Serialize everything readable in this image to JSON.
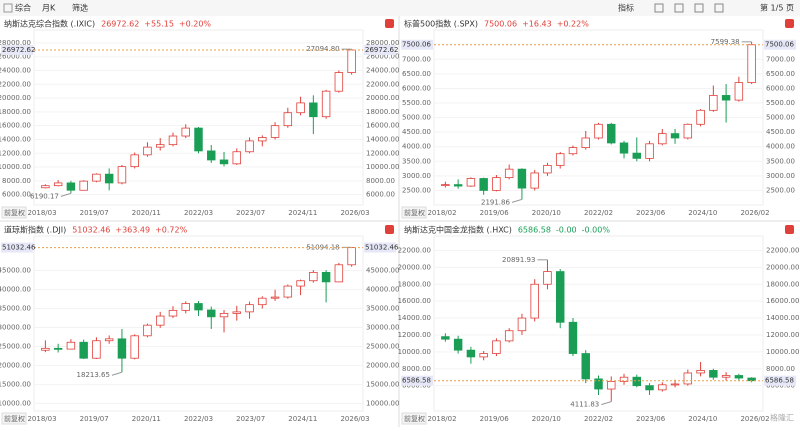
{
  "toolbar": {
    "tabs": [
      "综合",
      "月K",
      "筛选"
    ],
    "indicator": "指标",
    "page": "第 1/5 页"
  },
  "watermark": "格隆汇",
  "chart_data": [
    {
      "type": "candlestick",
      "title": "纳斯达克综合指数 (.IXIC)",
      "price": "26972.62",
      "change": "+55.15",
      "change_pct": "+0.20%",
      "header_color": "#e0403a",
      "adjust": "前复权",
      "up_color": "#e0403a",
      "down_color": "#1a9e55",
      "categories": [
        "2018/03",
        "2019/07",
        "2020/11",
        "2022/03",
        "2023/07",
        "2024/11",
        "2026/03"
      ],
      "open": [
        7000,
        7300,
        7700,
        6640,
        7960,
        8970,
        7700,
        10060,
        11770,
        12890,
        13250,
        14500,
        15650,
        12340,
        11030,
        10470,
        12220,
        13790,
        14300,
        16000,
        17880,
        19300,
        17300,
        21000,
        23700
      ],
      "close": [
        7300,
        7700,
        6640,
        7960,
        8970,
        7700,
        10060,
        11770,
        12890,
        13250,
        14500,
        15650,
        12340,
        11030,
        10470,
        12220,
        13790,
        14300,
        16000,
        17880,
        19300,
        17300,
        21000,
        23700,
        26972.62
      ],
      "high": [
        7500,
        8100,
        8000,
        8100,
        9100,
        9800,
        10300,
        12100,
        13600,
        14200,
        15000,
        16200,
        15800,
        13200,
        12200,
        12700,
        14300,
        14600,
        16500,
        18600,
        20200,
        20400,
        21200,
        24000,
        27094.8
      ],
      "low": [
        6900,
        7200,
        6190.17,
        6600,
        7800,
        6630,
        7500,
        9800,
        11500,
        12400,
        13000,
        14200,
        12000,
        10600,
        10100,
        10300,
        12000,
        13000,
        14000,
        15700,
        17500,
        14780,
        17000,
        20800,
        23400
      ],
      "annotations": [
        {
          "label": "27094.80",
          "value": 27094.8
        },
        {
          "label": "6190.17",
          "value": 6190.17
        }
      ],
      "ylim": [
        4500,
        29000
      ],
      "yticks": [
        {
          "value": 28000,
          "label": "28000.00"
        },
        {
          "value": 26000,
          "label": "26000.00"
        },
        {
          "value": 24000,
          "label": "24000.00"
        },
        {
          "value": 22000,
          "label": "22000.00"
        },
        {
          "value": 20000,
          "label": "20000.00"
        },
        {
          "value": 18000,
          "label": "18000.00"
        },
        {
          "value": 16000,
          "label": "16000.00"
        },
        {
          "value": 14000,
          "label": "14000.00"
        },
        {
          "value": 12000,
          "label": "12000.00"
        },
        {
          "value": 10000,
          "label": "10000.00"
        },
        {
          "value": 8000,
          "label": "8000.00"
        },
        {
          "value": 6000,
          "label": "6000.00"
        }
      ]
    },
    {
      "type": "candlestick",
      "title": "标普500指数 (.SPX)",
      "price": "7500.06",
      "change": "+16.43",
      "change_pct": "+0.22%",
      "header_color": "#e0403a",
      "adjust": "前复权",
      "up_color": "#e0403a",
      "down_color": "#1a9e55",
      "categories": [
        "2018/02",
        "2019/06",
        "2020/10",
        "2022/02",
        "2023/06",
        "2024/10",
        "2026/02"
      ],
      "open": [
        2670,
        2700,
        2650,
        2910,
        2500,
        2940,
        3230,
        2580,
        3100,
        3360,
        3760,
        3970,
        4300,
        4770,
        4130,
        3780,
        3600,
        4100,
        4450,
        4300,
        4770,
        5250,
        5760,
        5600,
        6200
      ],
      "close": [
        2700,
        2650,
        2910,
        2500,
        2940,
        3230,
        2580,
        3100,
        3360,
        3760,
        3970,
        4300,
        4770,
        4130,
        3780,
        3600,
        4100,
        4450,
        4300,
        4770,
        5250,
        5760,
        5600,
        6200,
        7500.06
      ],
      "high": [
        2800,
        2880,
        2950,
        2940,
        3030,
        3390,
        3260,
        3200,
        3450,
        3820,
        4040,
        4540,
        4820,
        4820,
        4200,
        4320,
        4200,
        4610,
        4610,
        4800,
        5290,
        6100,
        6150,
        6400,
        7599.38
      ],
      "low": [
        2600,
        2560,
        2620,
        2350,
        2470,
        2880,
        2191.86,
        2500,
        3000,
        3250,
        3700,
        3900,
        4250,
        4080,
        3600,
        3500,
        3500,
        4050,
        4100,
        4250,
        4700,
        5200,
        4830,
        5550,
        6150
      ],
      "annotations": [
        {
          "label": "7599.38",
          "value": 7599.38
        },
        {
          "label": "2191.86",
          "value": 2191.86
        }
      ],
      "ylim": [
        2000,
        7800
      ],
      "yticks": [
        {
          "value": 7000,
          "label": "7000.00"
        },
        {
          "value": 6500,
          "label": "6500.00"
        },
        {
          "value": 6000,
          "label": "6000.00"
        },
        {
          "value": 5500,
          "label": "5500.00"
        },
        {
          "value": 5000,
          "label": "5000.00"
        },
        {
          "value": 4500,
          "label": "4500.00"
        },
        {
          "value": 4000,
          "label": "4000.00"
        },
        {
          "value": 3500,
          "label": "3500.00"
        },
        {
          "value": 3000,
          "label": "3000.00"
        },
        {
          "value": 2500,
          "label": "2500.00"
        }
      ]
    },
    {
      "type": "candlestick",
      "title": "道琼斯指数 (.DJI)",
      "price": "51032.46",
      "change": "+363.49",
      "change_pct": "+0.72%",
      "header_color": "#e0403a",
      "adjust": "前复权",
      "up_color": "#e0403a",
      "down_color": "#1a9e55",
      "categories": [
        "2018/03",
        "2019/07",
        "2020/11",
        "2022/03",
        "2023/07",
        "2024/11",
        "2026/03"
      ],
      "open": [
        24000,
        24500,
        24300,
        26100,
        21900,
        26500,
        27000,
        21900,
        27800,
        30600,
        33000,
        34500,
        36300,
        34600,
        32800,
        33700,
        34100,
        36000,
        37700,
        38000,
        40900,
        42300,
        44500,
        42000,
        46500
      ],
      "close": [
        24500,
        24300,
        26100,
        21900,
        26500,
        27000,
        21900,
        27800,
        30600,
        33000,
        34500,
        36300,
        34600,
        32800,
        33700,
        34100,
        36000,
        37700,
        38000,
        40900,
        42300,
        44500,
        42000,
        46500,
        51032.46
      ],
      "high": [
        26600,
        25700,
        26900,
        26800,
        27400,
        27900,
        29600,
        28200,
        31000,
        34100,
        35600,
        36900,
        36950,
        35500,
        34600,
        35700,
        36800,
        38200,
        39900,
        41300,
        42600,
        45100,
        45100,
        47000,
        51094.18
      ],
      "low": [
        23500,
        23400,
        24200,
        21700,
        21700,
        25700,
        18213.65,
        21600,
        27400,
        29900,
        32500,
        33700,
        33000,
        29600,
        28700,
        31800,
        32300,
        35000,
        37000,
        37600,
        38500,
        41800,
        36600,
        41900,
        46000
      ],
      "annotations": [
        {
          "label": "51094.18",
          "value": 51094.18
        },
        {
          "label": "18213.65",
          "value": 18213.65
        }
      ],
      "ylim": [
        8000,
        52500
      ],
      "yticks": [
        {
          "value": 45000,
          "label": "45000.00"
        },
        {
          "value": 40000,
          "label": "40000.00"
        },
        {
          "value": 35000,
          "label": "35000.00"
        },
        {
          "value": 30000,
          "label": "30000.00"
        },
        {
          "value": 25000,
          "label": "25000.00"
        },
        {
          "value": 20000,
          "label": "20000.00"
        },
        {
          "value": 15000,
          "label": "15000.00"
        },
        {
          "value": 10000,
          "label": "10000.00"
        }
      ]
    },
    {
      "type": "candlestick",
      "title": "纳斯达克中国金龙指数 (.HXC)",
      "price": "6586.58",
      "change": "-0.00",
      "change_pct": "-0.00%",
      "header_color": "#1a9e55",
      "adjust": "前复权",
      "up_color": "#e0403a",
      "down_color": "#1a9e55",
      "categories": [
        "2018/02",
        "2019/06",
        "2020/10",
        "2022/02",
        "2023/06",
        "2024/10",
        "2026/02"
      ],
      "open": [
        11800,
        11500,
        10200,
        9400,
        9800,
        11300,
        12500,
        14000,
        18000,
        19500,
        13500,
        9800,
        6800,
        5600,
        6500,
        7000,
        6000,
        5500,
        6100,
        6200,
        7500,
        7800,
        7000,
        7200,
        6900
      ],
      "close": [
        11500,
        10200,
        9400,
        9800,
        11300,
        12500,
        14000,
        18000,
        19500,
        13500,
        9800,
        6800,
        5600,
        6500,
        7000,
        6000,
        5500,
        6100,
        6200,
        7500,
        7800,
        7000,
        7200,
        6900,
        6586.58
      ],
      "high": [
        12200,
        11900,
        10600,
        10100,
        11600,
        12800,
        14500,
        18600,
        20891.93,
        19800,
        14000,
        10200,
        7200,
        7100,
        7400,
        7300,
        6300,
        6400,
        6700,
        7900,
        8800,
        8000,
        7600,
        7400,
        7000
      ],
      "low": [
        11200,
        9800,
        8600,
        9000,
        9500,
        11100,
        12000,
        13600,
        17400,
        12800,
        9500,
        6300,
        4900,
        4111.83,
        6100,
        5800,
        4900,
        5300,
        5800,
        6000,
        7100,
        6700,
        6600,
        6600,
        6400
      ],
      "annotations": [
        {
          "label": "20891.93",
          "value": 20891.93
        },
        {
          "label": "4111.83",
          "value": 4111.83
        }
      ],
      "ylim": [
        3000,
        23000
      ],
      "yticks": [
        {
          "value": 22000,
          "label": "22000.00"
        },
        {
          "value": 20000,
          "label": "20000.00"
        },
        {
          "value": 18000,
          "label": "18000.00"
        },
        {
          "value": 16000,
          "label": "16000.00"
        },
        {
          "value": 14000,
          "label": "14000.00"
        },
        {
          "value": 12000,
          "label": "12000.00"
        },
        {
          "value": 10000,
          "label": "10000.00"
        },
        {
          "value": 8000,
          "label": "8000.00"
        },
        {
          "value": 6000,
          "label": "6000.00"
        }
      ]
    }
  ]
}
